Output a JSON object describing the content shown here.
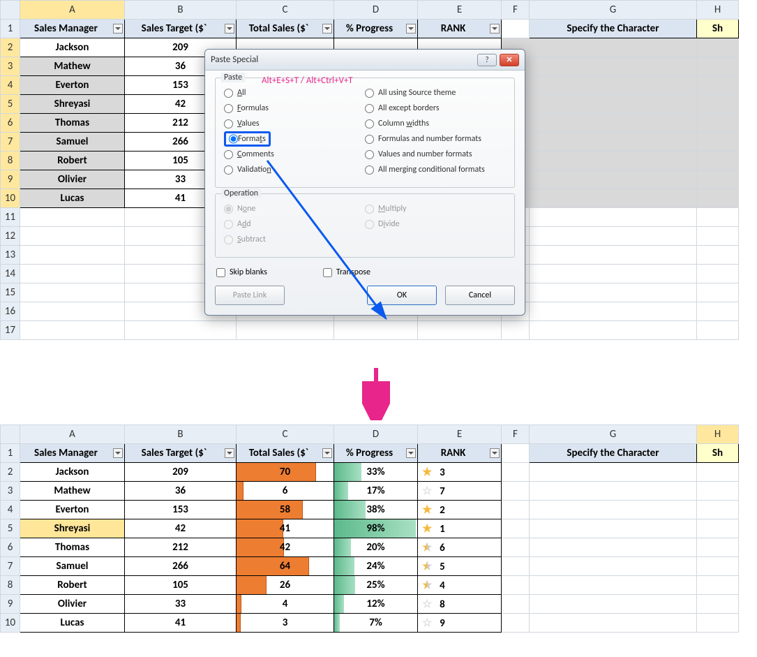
{
  "sheet1": {
    "cols": {
      "A": "A",
      "B": "B",
      "C": "C",
      "D": "D",
      "E": "E",
      "F": "F",
      "G": "G",
      "H": "H"
    },
    "headers": {
      "A": "Sales Manager",
      "B": "Sales Target ($`",
      "C": "Total Sales ($`",
      "D": "% Progress",
      "E": "RANK",
      "G": "Specify the Character",
      "H": "Sh"
    },
    "rows": [
      {
        "A": "Jackson",
        "B": "209"
      },
      {
        "A": "Mathew",
        "B": "36"
      },
      {
        "A": "Everton",
        "B": "153"
      },
      {
        "A": "Shreyasi",
        "B": "42"
      },
      {
        "A": "Thomas",
        "B": "212"
      },
      {
        "A": "Samuel",
        "B": "266"
      },
      {
        "A": "Robert",
        "B": "105"
      },
      {
        "A": "Olivier",
        "B": "33"
      },
      {
        "A": "Lucas",
        "B": "41"
      }
    ]
  },
  "dialog": {
    "title": "Paste Special",
    "shortcut": "Alt+E+S+T /  Alt+Ctrl+V+T",
    "paste_legend": "Paste",
    "op_legend": "Operation",
    "paste_left": [
      {
        "label": "All",
        "u": "A"
      },
      {
        "label": "Formulas",
        "u": "F"
      },
      {
        "label": "Values",
        "u": "V"
      },
      {
        "label": "Formats",
        "u": "t",
        "selected": true
      },
      {
        "label": "Comments",
        "u": "C"
      },
      {
        "label": "Validation",
        "u": "n"
      }
    ],
    "paste_right": [
      {
        "label": "All using Source theme"
      },
      {
        "label": "All except borders"
      },
      {
        "label": "Column widths",
        "u": "w"
      },
      {
        "label": "Formulas and number formats"
      },
      {
        "label": "Values and number formats"
      },
      {
        "label": "All merging conditional formats"
      }
    ],
    "ops_left": [
      {
        "label": "None",
        "u": "o",
        "selected": true
      },
      {
        "label": "Add",
        "u": "d"
      },
      {
        "label": "Subtract",
        "u": "S"
      }
    ],
    "ops_right": [
      {
        "label": "Multiply",
        "u": "M"
      },
      {
        "label": "Divide",
        "u": "i"
      }
    ],
    "skip": "Skip blanks",
    "transpose": "Transpose",
    "pastelink": "Paste Link",
    "ok": "OK",
    "cancel": "Cancel"
  },
  "sheet2": {
    "cols": {
      "A": "A",
      "B": "B",
      "C": "C",
      "D": "D",
      "E": "E",
      "F": "F",
      "G": "G",
      "H": "H"
    },
    "headers": {
      "A": "Sales Manager",
      "B": "Sales Target ($`",
      "C": "Total Sales ($`",
      "D": "% Progress",
      "E": "RANK",
      "G": "Specify the Character",
      "H": "Sh"
    },
    "rows": [
      {
        "A": "Jackson",
        "B": "209",
        "C": "70",
        "Cbar": 82,
        "D": "33%",
        "Dbar": 33,
        "rank": "3",
        "star": "gold"
      },
      {
        "A": "Mathew",
        "B": "36",
        "C": "6",
        "Cbar": 7,
        "D": "17%",
        "Dbar": 17,
        "rank": "7",
        "star": "empty"
      },
      {
        "A": "Everton",
        "B": "153",
        "C": "58",
        "Cbar": 68,
        "D": "38%",
        "Dbar": 38,
        "rank": "2",
        "star": "gold"
      },
      {
        "A": "Shreyasi",
        "B": "42",
        "C": "41",
        "Cbar": 48,
        "D": "98%",
        "Dbar": 98,
        "rank": "1",
        "star": "gold",
        "hly": true
      },
      {
        "A": "Thomas",
        "B": "212",
        "C": "42",
        "Cbar": 49,
        "D": "20%",
        "Dbar": 20,
        "rank": "6",
        "star": "half"
      },
      {
        "A": "Samuel",
        "B": "266",
        "C": "64",
        "Cbar": 75,
        "D": "24%",
        "Dbar": 24,
        "rank": "5",
        "star": "half"
      },
      {
        "A": "Robert",
        "B": "105",
        "C": "26",
        "Cbar": 31,
        "D": "25%",
        "Dbar": 25,
        "rank": "4",
        "star": "half"
      },
      {
        "A": "Olivier",
        "B": "33",
        "C": "4",
        "Cbar": 5,
        "D": "12%",
        "Dbar": 12,
        "rank": "8",
        "star": "empty"
      },
      {
        "A": "Lucas",
        "B": "41",
        "C": "3",
        "Cbar": 4,
        "D": "7%",
        "Dbar": 7,
        "rank": "9",
        "star": "empty"
      }
    ]
  },
  "colwidths": {
    "row": 28,
    "A": 150,
    "B": 160,
    "C": 140,
    "D": 120,
    "E": 120,
    "F": 40,
    "G": 240,
    "H": 60
  },
  "colors": {
    "headerbg": "#dbe5f1",
    "orange": "#ed7d31",
    "green1": "#5cb98a",
    "green2": "#a8e0c4",
    "yellowhl": "#ffe699",
    "shcell": "#ffffcc"
  }
}
